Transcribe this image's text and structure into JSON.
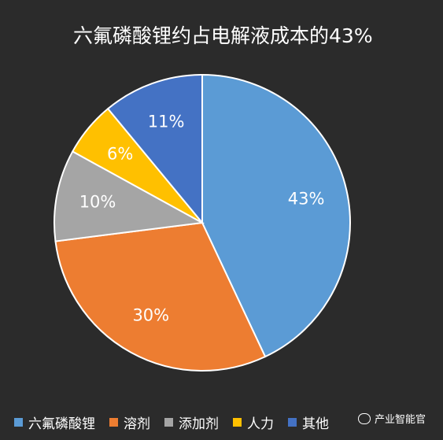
{
  "chart_data": {
    "type": "pie",
    "title": "六氟磷酸锂约占电解液成本的43%",
    "categories": [
      "六氟磷酸锂",
      "溶剂",
      "添加剂",
      "人力",
      "其他"
    ],
    "values": [
      43,
      30,
      10,
      6,
      11
    ],
    "data_labels": [
      "43%",
      "30%",
      "10%",
      "6%",
      "11%"
    ],
    "colors": [
      "#5b9bd5",
      "#ed7d31",
      "#a5a5a5",
      "#ffc000",
      "#4472c4"
    ],
    "legend_placement": "bottom",
    "start_angle": "12 o'clock, clockwise"
  },
  "watermark": {
    "text": "产业智能官"
  }
}
